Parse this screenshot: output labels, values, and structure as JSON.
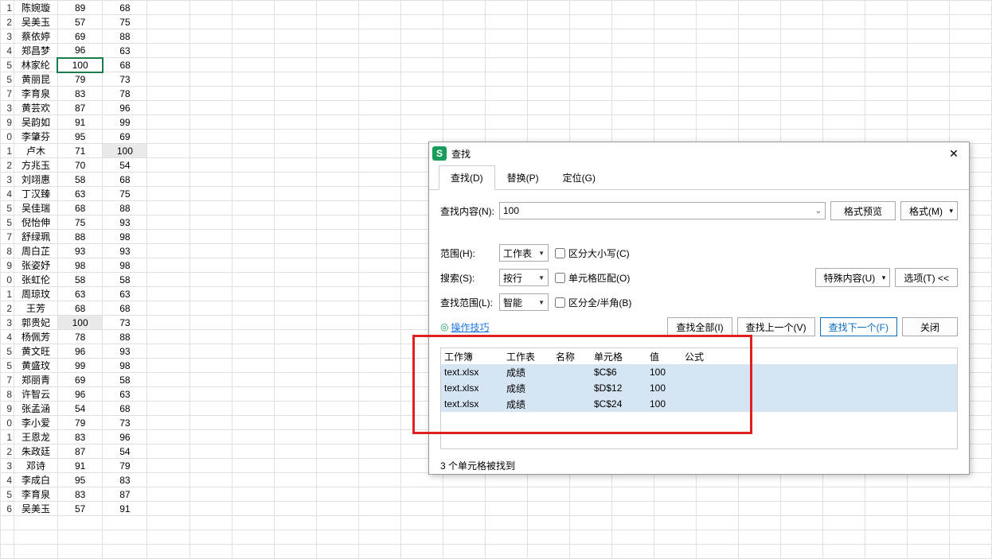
{
  "sheet": {
    "start_row": 1,
    "rows": [
      {
        "n": "1",
        "a": "陈婉璇",
        "b": "89",
        "c": "68"
      },
      {
        "n": "2",
        "a": "吴美玉",
        "b": "57",
        "c": "75"
      },
      {
        "n": "3",
        "a": "蔡依婷",
        "b": "69",
        "c": "88"
      },
      {
        "n": "4",
        "a": "郑昌梦",
        "b": "96",
        "c": "63"
      },
      {
        "n": "5",
        "a": "林家纶",
        "b": "100",
        "c": "68",
        "sel_b": true
      },
      {
        "n": "5",
        "a": "黄丽昆",
        "b": "79",
        "c": "73"
      },
      {
        "n": "7",
        "a": "李育泉",
        "b": "83",
        "c": "78"
      },
      {
        "n": "3",
        "a": "黄芸欢",
        "b": "87",
        "c": "96"
      },
      {
        "n": "9",
        "a": "吴韵如",
        "b": "91",
        "c": "99"
      },
      {
        "n": "0",
        "a": "李肇芬",
        "b": "95",
        "c": "69"
      },
      {
        "n": "1",
        "a": "卢木",
        "b": "71",
        "c": "100",
        "grey_c": true
      },
      {
        "n": "2",
        "a": "方兆玉",
        "b": "70",
        "c": "54"
      },
      {
        "n": "3",
        "a": "刘翊惠",
        "b": "58",
        "c": "68"
      },
      {
        "n": "4",
        "a": "丁汉臻",
        "b": "63",
        "c": "75"
      },
      {
        "n": "5",
        "a": "吴佳瑞",
        "b": "68",
        "c": "88"
      },
      {
        "n": "5",
        "a": "倪怡伸",
        "b": "75",
        "c": "93"
      },
      {
        "n": "7",
        "a": "舒绿珮",
        "b": "88",
        "c": "98"
      },
      {
        "n": "8",
        "a": "周白芷",
        "b": "93",
        "c": "93"
      },
      {
        "n": "9",
        "a": "张姿妤",
        "b": "98",
        "c": "98"
      },
      {
        "n": "0",
        "a": "张虹伦",
        "b": "58",
        "c": "58"
      },
      {
        "n": "1",
        "a": "周琼玟",
        "b": "63",
        "c": "63"
      },
      {
        "n": "2",
        "a": "王芳",
        "b": "68",
        "c": "68"
      },
      {
        "n": "3",
        "a": "郭贵妃",
        "b": "100",
        "c": "73",
        "grey_b": true
      },
      {
        "n": "4",
        "a": "杨佩芳",
        "b": "78",
        "c": "88"
      },
      {
        "n": "5",
        "a": "黄文旺",
        "b": "96",
        "c": "93"
      },
      {
        "n": "5",
        "a": "黄盛玟",
        "b": "99",
        "c": "98"
      },
      {
        "n": "7",
        "a": "郑丽青",
        "b": "69",
        "c": "58"
      },
      {
        "n": "8",
        "a": "许智云",
        "b": "96",
        "c": "63"
      },
      {
        "n": "9",
        "a": "张孟涵",
        "b": "54",
        "c": "68"
      },
      {
        "n": "0",
        "a": "李小爱",
        "b": "79",
        "c": "73"
      },
      {
        "n": "1",
        "a": "王恩龙",
        "b": "83",
        "c": "96"
      },
      {
        "n": "2",
        "a": "朱政廷",
        "b": "87",
        "c": "54"
      },
      {
        "n": "3",
        "a": "邓诗",
        "b": "91",
        "c": "79"
      },
      {
        "n": "4",
        "a": "李成白",
        "b": "95",
        "c": "83"
      },
      {
        "n": "5",
        "a": "李育泉",
        "b": "83",
        "c": "87"
      },
      {
        "n": "6",
        "a": "吴美玉",
        "b": "57",
        "c": "91"
      }
    ]
  },
  "dialog": {
    "icon": "S",
    "title": "查找",
    "tabs": {
      "find": "查找(D)",
      "replace": "替换(P)",
      "goto": "定位(G)"
    },
    "labels": {
      "find_content": "查找内容(N):",
      "range": "范围(H):",
      "search": "搜索(S):",
      "find_scope": "查找范围(L):"
    },
    "find_value": "100",
    "format_preview": "格式预览",
    "format_btn": "格式(M)",
    "range_val": "工作表",
    "search_val": "按行",
    "scope_val": "智能",
    "chk_case": "区分大小写(C)",
    "chk_cellmatch": "单元格匹配(O)",
    "chk_fullhalf": "区分全/半角(B)",
    "special_btn": "特殊内容(U)",
    "options_btn": "选项(T) <<",
    "tips": "操作技巧",
    "btn_findall": "查找全部(I)",
    "btn_findprev": "查找上一个(V)",
    "btn_findnext": "查找下一个(F)",
    "btn_close": "关闭",
    "results": {
      "headers": {
        "workbook": "工作簿",
        "worksheet": "工作表",
        "name": "名称",
        "cell": "单元格",
        "value": "值",
        "formula": "公式"
      },
      "rows": [
        {
          "wb": "text.xlsx",
          "ws": "成绩",
          "nm": "",
          "cell": "$C$6",
          "val": "100",
          "fm": ""
        },
        {
          "wb": "text.xlsx",
          "ws": "成绩",
          "nm": "",
          "cell": "$D$12",
          "val": "100",
          "fm": ""
        },
        {
          "wb": "text.xlsx",
          "ws": "成绩",
          "nm": "",
          "cell": "$C$24",
          "val": "100",
          "fm": ""
        }
      ]
    },
    "status": "3 个单元格被找到"
  }
}
